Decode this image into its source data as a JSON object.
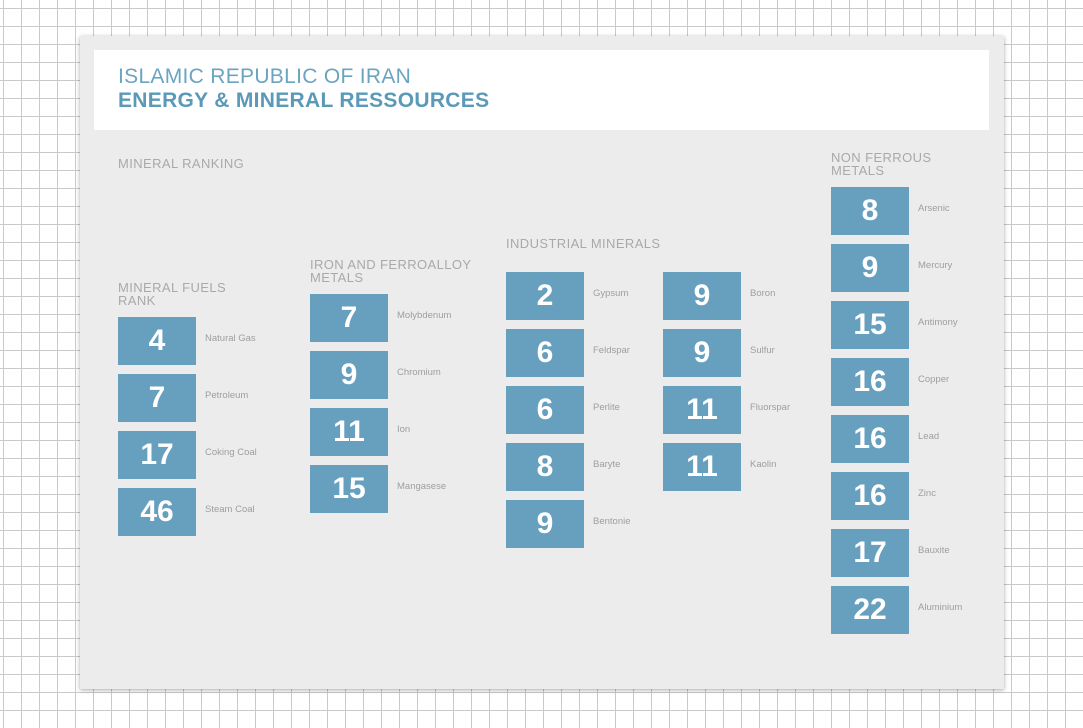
{
  "header": {
    "title": "ISLAMIC REPUBLIC OF IRAN",
    "subtitle": "ENERGY & MINERAL RESSOURCES"
  },
  "section_label": "MINERAL RANKING",
  "colors": {
    "box": "#679fbf",
    "title": "#5a9ab8"
  },
  "chart_data": [
    {
      "type": "table",
      "title": "MINERAL FUELS RANK",
      "categories": [
        "Natural Gas",
        "Petroleum",
        "Coking Coal",
        "Steam Coal"
      ],
      "values": [
        4,
        7,
        17,
        46
      ]
    },
    {
      "type": "table",
      "title": "IRON AND FERROALLOY METALS",
      "categories": [
        "Molybdenum",
        "Chromium",
        "Ion",
        "Mangasese"
      ],
      "values": [
        7,
        9,
        11,
        15
      ]
    },
    {
      "type": "table",
      "title": "INDUSTRIAL MINERALS",
      "categories": [
        "Gypsum",
        "Feldspar",
        "Perlite",
        "Baryte",
        "Bentonie",
        "Boron",
        "Sulfur",
        "Fluorspar",
        "Kaolin"
      ],
      "values": [
        2,
        6,
        6,
        8,
        9,
        9,
        9,
        11,
        11
      ]
    },
    {
      "type": "table",
      "title": "NON FERROUS METALS",
      "categories": [
        "Arsenic",
        "Mercury",
        "Antimony",
        "Copper",
        "Lead",
        "Zinc",
        "Bauxite",
        "Aluminium"
      ],
      "values": [
        8,
        9,
        15,
        16,
        16,
        16,
        17,
        22
      ]
    }
  ]
}
